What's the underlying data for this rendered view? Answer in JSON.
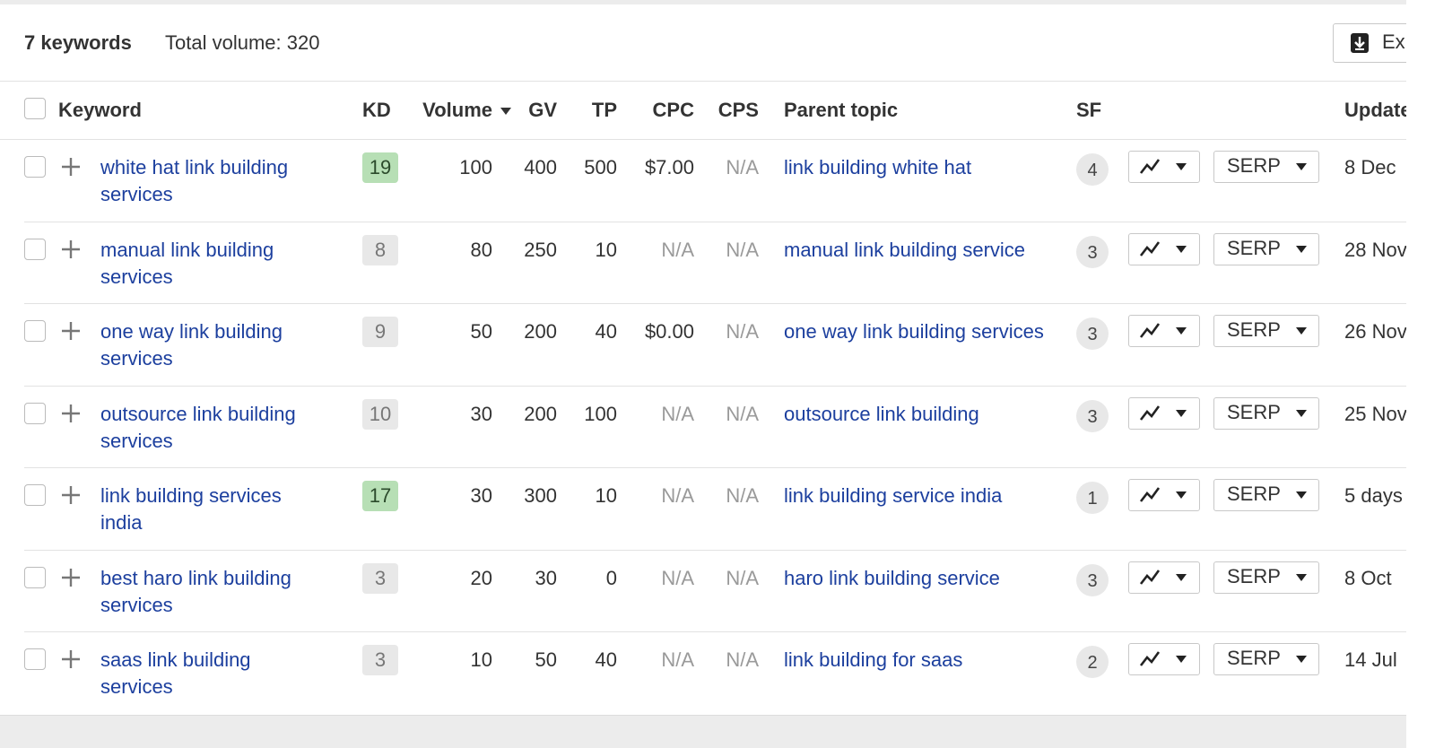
{
  "header": {
    "count": "7 keywords",
    "total": "Total volume: 320",
    "export": "Ex"
  },
  "table": {
    "columns": [
      "Keyword",
      "KD",
      "Volume",
      "GV",
      "TP",
      "CPC",
      "CPS",
      "Parent topic",
      "SF",
      "Update"
    ],
    "serp_label": "SERP",
    "rows": [
      {
        "keyword": "white hat link building services",
        "kd": 19,
        "volume": 100,
        "gv": 400,
        "tp": 500,
        "cpc": "$7.00",
        "cps": "N/A",
        "parent": "link building white hat",
        "sf": 4,
        "updated": "8 Dec"
      },
      {
        "keyword": "manual link building services",
        "kd": 8,
        "volume": 80,
        "gv": 250,
        "tp": 10,
        "cpc": "N/A",
        "cps": "N/A",
        "parent": "manual link building service",
        "sf": 3,
        "updated": "28 Nov"
      },
      {
        "keyword": "one way link building services",
        "kd": 9,
        "volume": 50,
        "gv": 200,
        "tp": 40,
        "cpc": "$0.00",
        "cps": "N/A",
        "parent": "one way link building services",
        "sf": 3,
        "updated": "26 Nov"
      },
      {
        "keyword": "outsource link building services",
        "kd": 10,
        "volume": 30,
        "gv": 200,
        "tp": 100,
        "cpc": "N/A",
        "cps": "N/A",
        "parent": "outsource link building",
        "sf": 3,
        "updated": "25 Nov"
      },
      {
        "keyword": "link building services india",
        "kd": 17,
        "volume": 30,
        "gv": 300,
        "tp": 10,
        "cpc": "N/A",
        "cps": "N/A",
        "parent": "link building service india",
        "sf": 1,
        "updated": "5 days"
      },
      {
        "keyword": "best haro link building services",
        "kd": 3,
        "volume": 20,
        "gv": 30,
        "tp": 0,
        "cpc": "N/A",
        "cps": "N/A",
        "parent": "haro link building service",
        "sf": 3,
        "updated": "8 Oct"
      },
      {
        "keyword": "saas link building services",
        "kd": 3,
        "volume": 10,
        "gv": 50,
        "tp": 40,
        "cpc": "N/A",
        "cps": "N/A",
        "parent": "link building for saas",
        "sf": 2,
        "updated": "14 Jul"
      }
    ]
  }
}
